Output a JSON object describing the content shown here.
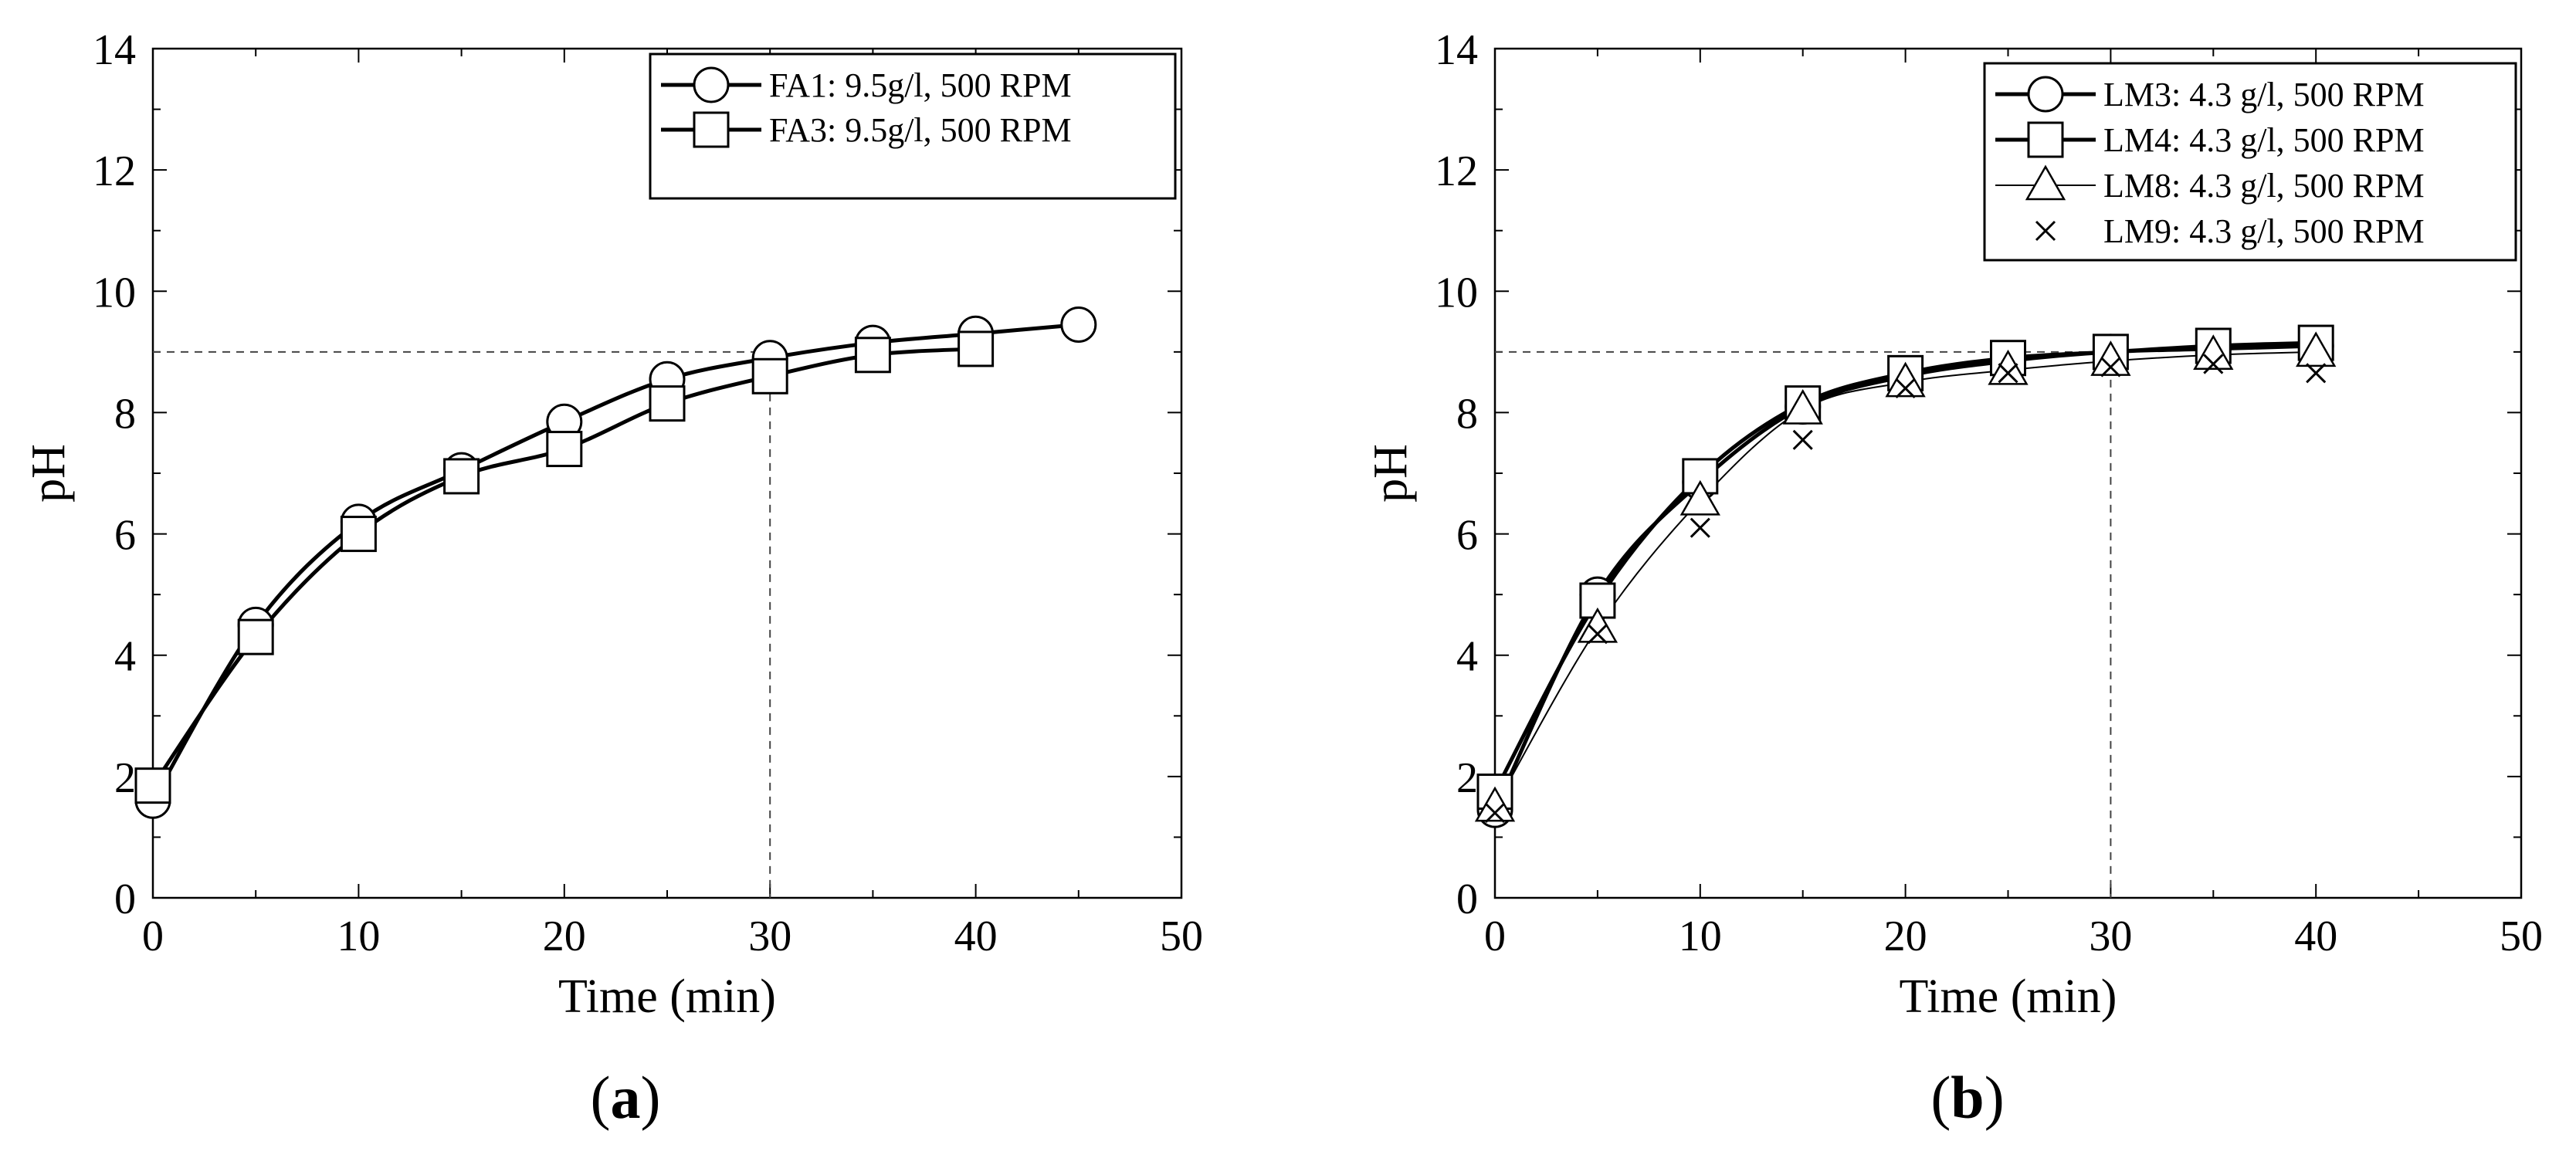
{
  "chart_data": [
    {
      "type": "line",
      "panel_label": "a",
      "xlabel": "Time (min)",
      "ylabel": "pH",
      "xlim": [
        0,
        50
      ],
      "ylim": [
        0,
        14
      ],
      "xticks": [
        0,
        10,
        20,
        30,
        40,
        50
      ],
      "yticks": [
        0,
        2,
        4,
        6,
        8,
        10,
        12,
        14
      ],
      "legend": "top-right",
      "reference_lines": {
        "y": 9,
        "x": 30,
        "style": "dashed"
      },
      "series": [
        {
          "name": "FA1:  9.5g/l,  500 RPM",
          "marker": "circle",
          "line": "thick",
          "x": [
            0,
            5,
            10,
            15,
            20,
            25,
            30,
            35,
            40,
            45
          ],
          "y": [
            1.6,
            4.5,
            6.2,
            7.05,
            7.85,
            8.55,
            8.9,
            9.15,
            9.3,
            9.45
          ]
        },
        {
          "name": "FA3:  9.5g/l, 500 RPM",
          "marker": "square",
          "line": "thick",
          "x": [
            0,
            5,
            10,
            15,
            20,
            25,
            30,
            35,
            40
          ],
          "y": [
            1.85,
            4.3,
            6.0,
            6.95,
            7.4,
            8.15,
            8.6,
            8.95,
            9.05
          ]
        }
      ]
    },
    {
      "type": "line",
      "panel_label": "b",
      "xlabel": "Time (min)",
      "ylabel": "pH",
      "xlim": [
        0,
        50
      ],
      "ylim": [
        0,
        14
      ],
      "xticks": [
        0,
        10,
        20,
        30,
        40,
        50
      ],
      "yticks": [
        0,
        2,
        4,
        6,
        8,
        10,
        12,
        14
      ],
      "legend": "top-right",
      "reference_lines": {
        "y": 9,
        "x": 30,
        "style": "dashed"
      },
      "series": [
        {
          "name": "LM3:  4.3 g/l, 500 RPM",
          "marker": "circle",
          "line": "thick",
          "x": [
            0,
            5,
            10,
            15,
            20,
            25,
            30,
            35,
            40
          ],
          "y": [
            1.45,
            5.0,
            6.85,
            8.1,
            8.6,
            8.85,
            9.0,
            9.05,
            9.1
          ]
        },
        {
          "name": "LM4:  4.3 g/l, 500 RPM",
          "marker": "square",
          "line": "thick",
          "x": [
            0,
            5,
            10,
            15,
            20,
            25,
            30,
            35,
            40
          ],
          "y": [
            1.75,
            4.9,
            6.95,
            8.15,
            8.65,
            8.9,
            9.0,
            9.1,
            9.15
          ]
        },
        {
          "name": "LM8:  4.3 g/l, 500 RPM",
          "marker": "triangle",
          "line": "thin",
          "x": [
            0,
            5,
            10,
            15,
            20,
            25,
            30,
            35,
            40
          ],
          "y": [
            1.5,
            4.45,
            6.55,
            8.05,
            8.5,
            8.7,
            8.85,
            8.95,
            9.0
          ]
        },
        {
          "name": "LM9:  4.3 g/l, 500 RPM",
          "marker": "cross",
          "line": "none",
          "x": [
            0,
            5,
            10,
            15,
            20,
            25,
            30,
            35,
            40
          ],
          "y": [
            1.4,
            4.35,
            6.1,
            7.55,
            8.4,
            8.65,
            8.75,
            8.8,
            8.65
          ]
        }
      ]
    }
  ]
}
